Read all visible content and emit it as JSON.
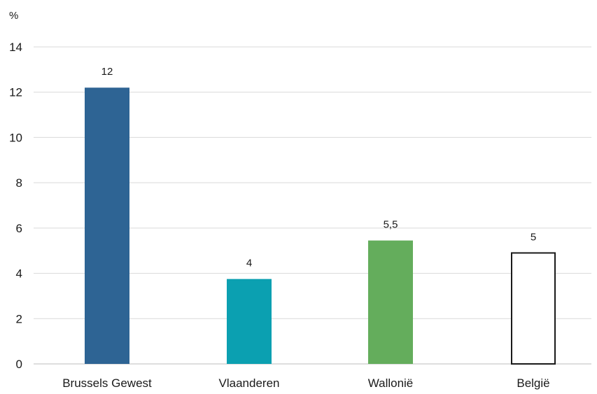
{
  "chart_data": {
    "type": "bar",
    "ylabel": "%",
    "categories": [
      "Brussels Gewest",
      "Vlaanderen",
      "Wallonië",
      "België"
    ],
    "values": [
      12.2,
      3.75,
      5.45,
      4.9
    ],
    "data_labels": [
      "12",
      "4",
      "5,5",
      "5"
    ],
    "yticks": [
      0,
      2,
      4,
      6,
      8,
      10,
      12,
      14
    ],
    "ylim": [
      0,
      14
    ],
    "grid": true,
    "colors": [
      "#2e6494",
      "#0ba0b1",
      "#64ad5c",
      "#ffffff"
    ],
    "edge_colors": [
      "none",
      "none",
      "none",
      "#1a1a1a"
    ]
  }
}
